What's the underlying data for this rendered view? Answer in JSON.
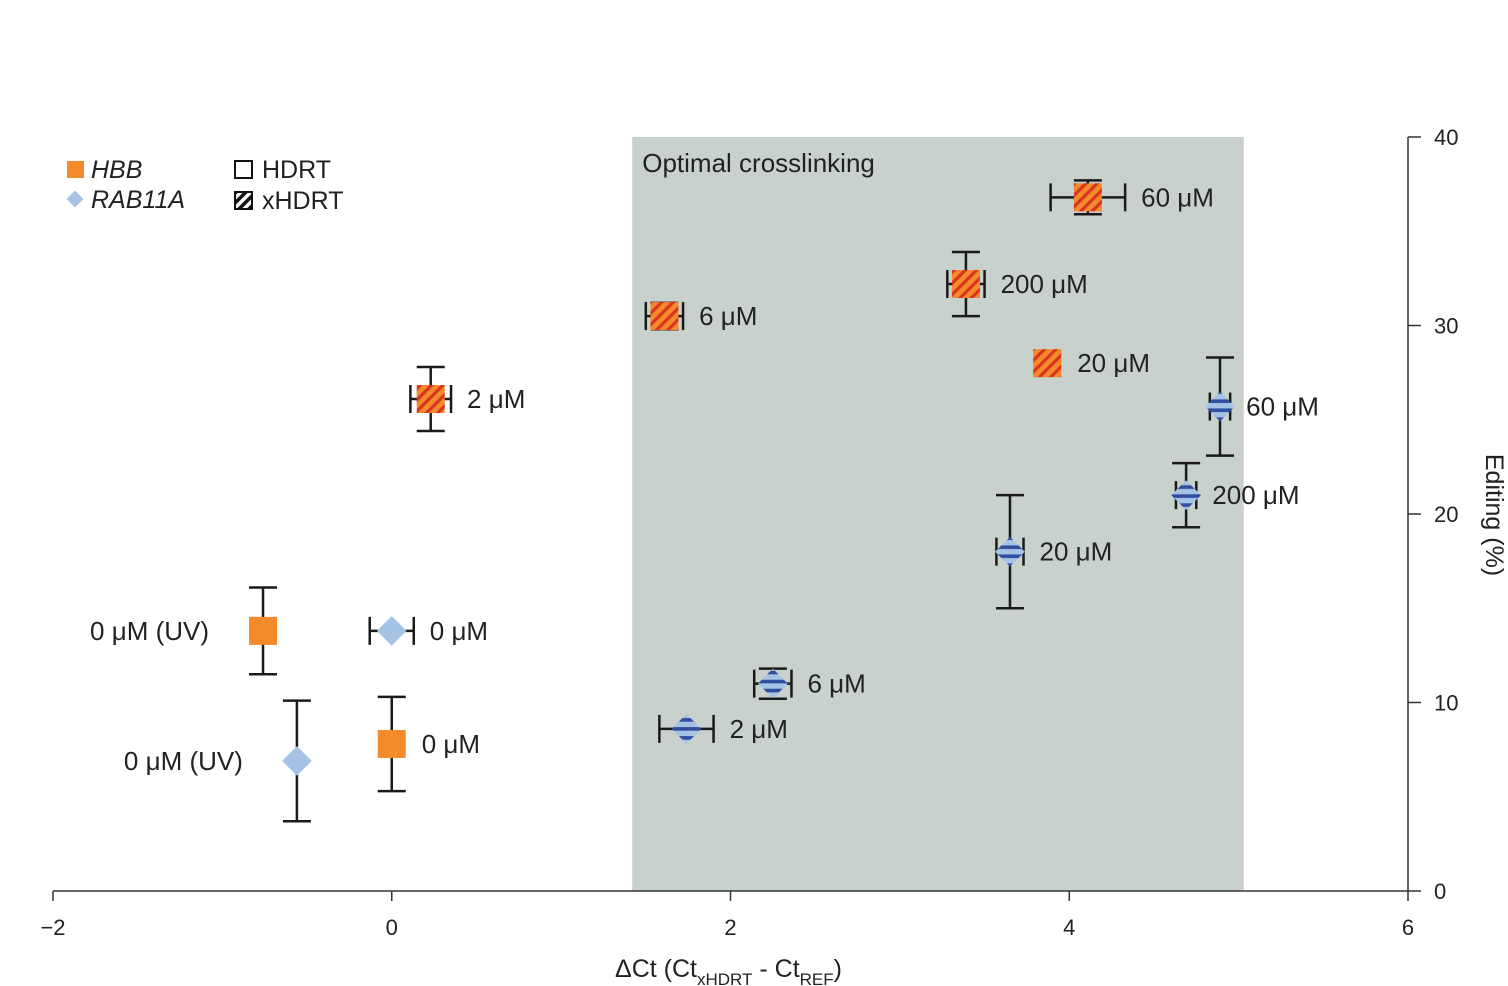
{
  "chart_data": {
    "type": "scatter",
    "title": "",
    "xlabel": {
      "base": "ΔCt (Ct",
      "sub1": "xHDRT",
      "mid": " - Ct",
      "sub2": "REF",
      "end": ")"
    },
    "ylabel": "Editing (%)",
    "xlim": [
      -2,
      6
    ],
    "ylim": [
      0,
      40
    ],
    "x_ticks": [
      -2,
      0,
      2,
      4,
      6
    ],
    "x_tick_labels": [
      "−2",
      "0",
      "2",
      "4",
      "6"
    ],
    "y_ticks": [
      0,
      10,
      20,
      30,
      40
    ],
    "y_tick_labels": [
      "0",
      "10",
      "20",
      "30",
      "40"
    ],
    "y_axis_side": "right",
    "shaded_region": {
      "x": [
        1.42,
        5.03
      ],
      "label": "Optimal crosslinking",
      "color": "#c8d1cb"
    },
    "legend": {
      "placement": "top-left",
      "genes": [
        {
          "label": "HBB",
          "marker": "square",
          "color": "#f58a2b"
        },
        {
          "label": "RAB11A",
          "marker": "diamond",
          "color": "#a6c3e6"
        }
      ],
      "templates": [
        {
          "label": "HDRT",
          "style": "open"
        },
        {
          "label": "xHDRT",
          "style": "hatched"
        }
      ]
    },
    "colors": {
      "hbb_fill": "#f58a2b",
      "hbb_hatch": "#d9341f",
      "rab_fill": "#a6c3e6",
      "rab_hatch": "#2f4e9e",
      "error_bar": "#1a1a1a",
      "axis": "#333333"
    },
    "series": [
      {
        "name": "HBB",
        "marker": "square",
        "points": [
          {
            "x": -0.76,
            "y": 13.8,
            "xerr": 0.0,
            "yerr": 2.3,
            "label": "0 μM (UV)",
            "label_side": "left",
            "hatched": false
          },
          {
            "x": 0.0,
            "y": 7.8,
            "xerr": 0.0,
            "yerr": 2.5,
            "label": "0 μM",
            "label_side": "right",
            "hatched": false
          },
          {
            "x": 0.23,
            "y": 26.1,
            "xerr": 0.12,
            "yerr": 1.7,
            "label": "2 μM",
            "label_side": "right",
            "hatched": true
          },
          {
            "x": 1.61,
            "y": 30.5,
            "xerr": 0.11,
            "yerr": 0.7,
            "label": "6 μM",
            "label_side": "right",
            "hatched": true
          },
          {
            "x": 3.87,
            "y": 28.0,
            "xerr": 0.0,
            "yerr": 0.0,
            "label": "20 μM",
            "label_side": "right",
            "hatched": true
          },
          {
            "x": 4.11,
            "y": 36.8,
            "xerr": 0.22,
            "yerr": 0.9,
            "label": "60 μM",
            "label_side": "right",
            "hatched": true
          },
          {
            "x": 3.39,
            "y": 32.2,
            "xerr": 0.11,
            "yerr": 1.7,
            "label": "200 μM",
            "label_side": "right",
            "hatched": true
          }
        ]
      },
      {
        "name": "RAB11A",
        "marker": "diamond",
        "points": [
          {
            "x": -0.56,
            "y": 6.9,
            "xerr": 0.0,
            "yerr": 3.2,
            "label": "0 μM (UV)",
            "label_side": "left",
            "hatched": false
          },
          {
            "x": 0.0,
            "y": 13.8,
            "xerr": 0.13,
            "yerr": 0.0,
            "label": "0 μM",
            "label_side": "right",
            "hatched": false
          },
          {
            "x": 1.74,
            "y": 8.6,
            "xerr": 0.16,
            "yerr": 0.0,
            "label": "2 μM",
            "label_side": "right",
            "hatched": true
          },
          {
            "x": 2.25,
            "y": 11.0,
            "xerr": 0.11,
            "yerr": 0.8,
            "label": "6 μM",
            "label_side": "right",
            "hatched": true
          },
          {
            "x": 3.65,
            "y": 18.0,
            "xerr": 0.08,
            "yerr": 3.0,
            "label": "20 μM",
            "label_side": "right",
            "hatched": true
          },
          {
            "x": 4.89,
            "y": 25.7,
            "xerr": 0.06,
            "yerr": 2.6,
            "label": "60 μM",
            "label_side": "right",
            "hatched": true
          },
          {
            "x": 4.69,
            "y": 21.0,
            "xerr": 0.06,
            "yerr": 1.7,
            "label": "200 μM",
            "label_side": "right",
            "hatched": true
          }
        ]
      }
    ]
  }
}
